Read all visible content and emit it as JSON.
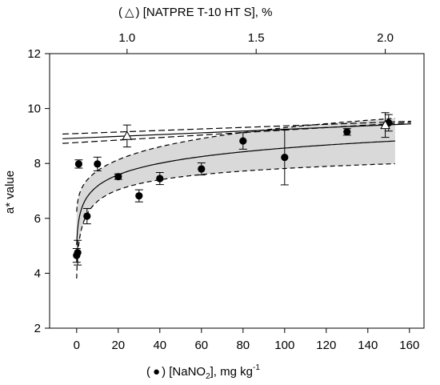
{
  "chart_data": {
    "type": "scatter",
    "title": "",
    "top_axis": {
      "label_prefix": "(",
      "label_marker": "△",
      "label_text": ")  [NATPRE T-10 HT S], %",
      "ticks": [
        1.0,
        1.5,
        2.0
      ],
      "tick_labels": [
        "1.0",
        "1.5",
        "2.0"
      ],
      "range": [
        0.7,
        2.15
      ]
    },
    "x_axis": {
      "label_prefix": "(",
      "label_marker": "●",
      "label_text": ")  [NaNO",
      "label_sub": "2",
      "label_after": "], mg kg",
      "label_sup": "-1",
      "ticks": [
        0,
        20,
        40,
        60,
        80,
        100,
        120,
        140,
        160
      ],
      "tick_labels": [
        "0",
        "20",
        "40",
        "60",
        "80",
        "100",
        "120",
        "140",
        "160"
      ],
      "range": [
        -13,
        167
      ]
    },
    "y_axis": {
      "label": "a* value",
      "ticks": [
        2,
        4,
        6,
        8,
        10,
        12
      ],
      "tick_labels": [
        "2",
        "4",
        "6",
        "8",
        "10",
        "12"
      ],
      "range": [
        2,
        12
      ]
    },
    "series": [
      {
        "marker": "filled-circle",
        "axis": "bottom",
        "points": [
          {
            "x": 0,
            "y": 4.65,
            "err": 0.25
          },
          {
            "x": 0.5,
            "y": 4.75,
            "err": 0.45
          },
          {
            "x": 1,
            "y": 7.98,
            "err": 0.15
          },
          {
            "x": 5,
            "y": 6.08,
            "err": 0.28
          },
          {
            "x": 10,
            "y": 7.98,
            "err": 0.25
          },
          {
            "x": 20,
            "y": 7.52,
            "err": 0.1
          },
          {
            "x": 30,
            "y": 6.82,
            "err": 0.22
          },
          {
            "x": 40,
            "y": 7.45,
            "err": 0.22
          },
          {
            "x": 60,
            "y": 7.8,
            "err": 0.22
          },
          {
            "x": 80,
            "y": 8.82,
            "err": 0.3
          },
          {
            "x": 100,
            "y": 8.22,
            "err": 1.0
          },
          {
            "x": 130,
            "y": 9.15,
            "err": 0.12
          },
          {
            "x": 150,
            "y": 9.48,
            "err": 0.3
          }
        ],
        "fit": {
          "type": "log",
          "ci": "shaded"
        }
      },
      {
        "marker": "open-triangle",
        "axis": "top",
        "points": [
          {
            "x": 1.0,
            "y": 9.0,
            "err": 0.4
          },
          {
            "x": 2.0,
            "y": 9.4,
            "err": 0.45
          }
        ],
        "fit": {
          "type": "linear",
          "ci": "dashed"
        }
      }
    ]
  }
}
